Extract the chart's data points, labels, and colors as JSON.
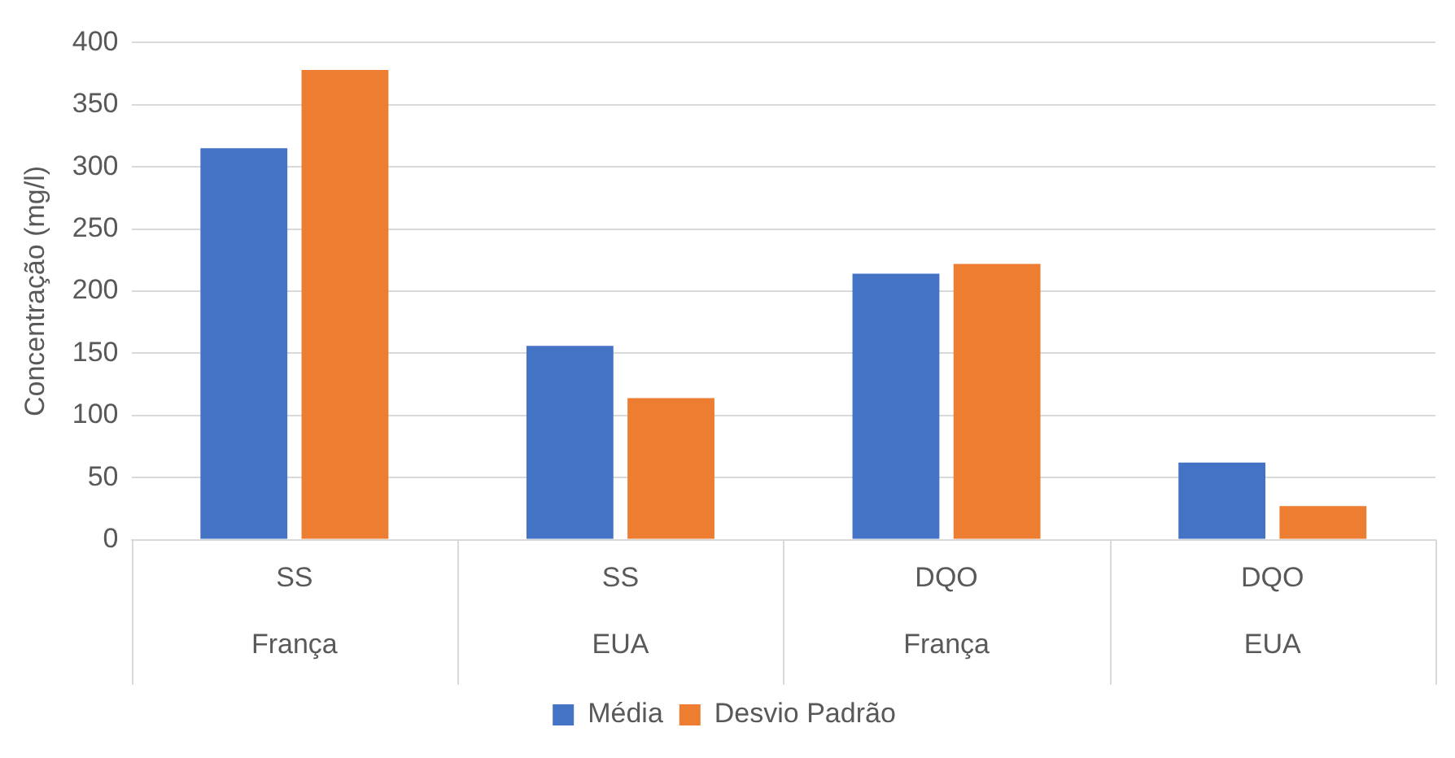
{
  "chart_data": {
    "type": "bar",
    "ylabel": "Concentração (mg/l)",
    "categories": [
      "SS\nFrança",
      "SS\nEUA",
      "DQO\nFrança",
      "DQO\nEUA"
    ],
    "series": [
      {
        "name": "Média",
        "color": "#4472c4",
        "values": [
          315,
          156,
          214,
          62
        ]
      },
      {
        "name": "Desvio Padrão",
        "color": "#ed7d31",
        "values": [
          378,
          114,
          222,
          27
        ]
      }
    ],
    "ylim": [
      0,
      400
    ],
    "yticks": [
      0,
      50,
      100,
      150,
      200,
      250,
      300,
      350,
      400
    ],
    "grid": "y",
    "legend": "bottom"
  }
}
